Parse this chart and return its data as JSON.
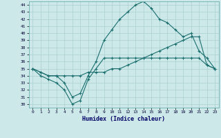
{
  "xlabel": "Humidex (Indice chaleur)",
  "ylabel": "",
  "bg_color": "#cce8e8",
  "grid_color": "#aacfcf",
  "line_color": "#1a6e6e",
  "xlim": [
    -0.5,
    23.5
  ],
  "ylim": [
    29.5,
    44.5
  ],
  "xticks": [
    0,
    1,
    2,
    3,
    4,
    5,
    6,
    7,
    8,
    9,
    10,
    11,
    12,
    13,
    14,
    15,
    16,
    17,
    18,
    19,
    20,
    21,
    22,
    23
  ],
  "yticks": [
    30,
    31,
    32,
    33,
    34,
    35,
    36,
    37,
    38,
    39,
    40,
    41,
    42,
    43,
    44
  ],
  "line1_x": [
    0,
    1,
    2,
    3,
    4,
    5,
    6,
    7,
    8,
    9,
    10,
    11,
    12,
    13,
    14,
    15,
    16,
    17,
    18,
    19,
    20,
    21,
    22,
    23
  ],
  "line1_y": [
    35.0,
    34.0,
    33.5,
    33.0,
    32.0,
    30.0,
    30.5,
    33.5,
    35.0,
    36.5,
    36.5,
    36.5,
    36.5,
    36.5,
    36.5,
    36.5,
    36.5,
    36.5,
    36.5,
    36.5,
    36.5,
    36.5,
    35.5,
    35.0
  ],
  "line2_x": [
    0,
    1,
    2,
    3,
    4,
    5,
    6,
    7,
    8,
    9,
    10,
    11,
    12,
    13,
    14,
    15,
    16,
    17,
    18,
    19,
    20,
    21,
    22,
    23
  ],
  "line2_y": [
    35.0,
    34.5,
    34.0,
    34.0,
    33.0,
    31.0,
    31.5,
    34.0,
    36.0,
    39.0,
    40.5,
    42.0,
    43.0,
    44.0,
    44.5,
    43.5,
    42.0,
    41.5,
    40.5,
    39.5,
    40.0,
    37.5,
    36.5,
    35.0
  ],
  "line3_x": [
    0,
    1,
    2,
    3,
    4,
    5,
    6,
    7,
    8,
    9,
    10,
    11,
    12,
    13,
    14,
    15,
    16,
    17,
    18,
    19,
    20,
    21,
    22,
    23
  ],
  "line3_y": [
    35.0,
    34.5,
    34.0,
    34.0,
    34.0,
    34.0,
    34.0,
    34.5,
    34.5,
    34.5,
    35.0,
    35.0,
    35.5,
    36.0,
    36.5,
    37.0,
    37.5,
    38.0,
    38.5,
    39.0,
    39.5,
    39.5,
    35.5,
    35.0
  ]
}
